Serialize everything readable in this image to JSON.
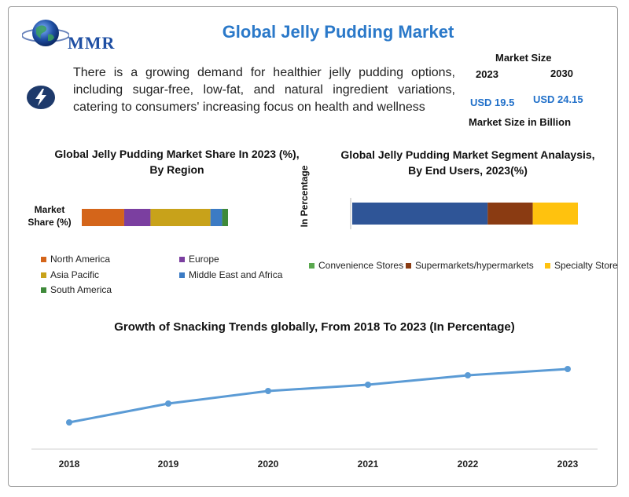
{
  "brand": {
    "logo_text": "MMR"
  },
  "title": "Global Jelly Pudding Market",
  "intro": {
    "icon": "lightning-icon",
    "text": "There is a growing demand for healthier jelly pudding options, including sugar-free, low-fat, and natural ingredient variations, catering to consumers' increasing focus on health and wellness"
  },
  "market_size": {
    "label": "Market Size",
    "year_start": "2023",
    "year_end": "2030",
    "value_start": "USD 19.5",
    "value_end": "USD 24.15",
    "unit_label": "Market Size in Billion"
  },
  "colors": {
    "title": "#2b79c9",
    "north_america": "#d4651a",
    "europe": "#7b3fa0",
    "asia_pacific": "#c8a21a",
    "mea": "#3c7bc4",
    "south_america": "#3f8a3a",
    "convenience": "#5aa84f",
    "supermarkets": "#8a3b12",
    "specialty": "#ffc20e",
    "line": "#5b9bd5"
  },
  "chart_data": [
    {
      "type": "bar",
      "orientation": "horizontal-stacked",
      "title": "Global Jelly Pudding Market Share In 2023 (%), By Region",
      "category_label": "Market Share (%)",
      "series": [
        {
          "name": "North America",
          "value": 29
        },
        {
          "name": "Europe",
          "value": 18
        },
        {
          "name": "Asia Pacific",
          "value": 41
        },
        {
          "name": "Middle East and Africa",
          "value": 8
        },
        {
          "name": "South America",
          "value": 4
        }
      ],
      "legend_position": "bottom"
    },
    {
      "type": "bar",
      "orientation": "horizontal-stacked",
      "title": "Global Jelly Pudding Market Segment Analaysis, By End Users, 2023(%)",
      "ylabel": "In Percentage",
      "series": [
        {
          "name": "Convenience Stores",
          "value": 60
        },
        {
          "name": "Supermarkets/hypermarkets",
          "value": 20
        },
        {
          "name": "Specialty Store",
          "value": 20
        }
      ],
      "legend_position": "bottom"
    },
    {
      "type": "line",
      "title": "Growth of Snacking Trends globally, From 2018 To 2023 (In Percentage)",
      "x": [
        "2018",
        "2019",
        "2020",
        "2021",
        "2022",
        "2023"
      ],
      "values": [
        10,
        22,
        30,
        34,
        40,
        44
      ],
      "ylim": [
        0,
        50
      ],
      "grid": false
    }
  ]
}
